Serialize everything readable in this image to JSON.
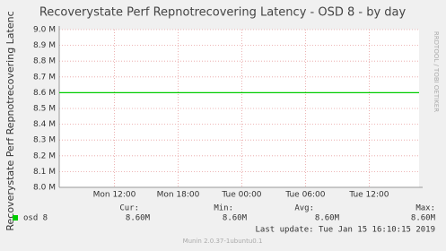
{
  "chart_data": {
    "type": "line",
    "title": "Recoverystate Perf Repnotrecovering Latency - OSD 8 - by day",
    "y_label": "Recoverystate Perf Repnotrecovering Latenc",
    "side_text": "RRDTOOL / TOBI OETIKER",
    "x": [
      6.8,
      40.7
    ],
    "series": [
      {
        "name": "osd 8",
        "color": "#00cc00",
        "values": [
          8.6,
          8.6
        ],
        "cur": "8.60M",
        "min": "8.60M",
        "avg": "8.60M",
        "max": "8.60M"
      }
    ],
    "stat_headers": [
      "Cur:",
      "Min:",
      "Avg:",
      "Max:"
    ],
    "xlim": [
      6.8,
      40.7
    ],
    "xticks": [
      {
        "value": 12,
        "label": "Mon 12:00"
      },
      {
        "value": 18,
        "label": "Mon 18:00"
      },
      {
        "value": 24,
        "label": "Tue 00:00"
      },
      {
        "value": 30,
        "label": "Tue 06:00"
      },
      {
        "value": 36,
        "label": "Tue 12:00"
      }
    ],
    "ylim": [
      8.0,
      9.0
    ],
    "yticks": [
      {
        "value": 8.0,
        "label": "8.0 M"
      },
      {
        "value": 8.1,
        "label": "8.1 M"
      },
      {
        "value": 8.2,
        "label": "8.2 M"
      },
      {
        "value": 8.3,
        "label": "8.3 M"
      },
      {
        "value": 8.4,
        "label": "8.4 M"
      },
      {
        "value": 8.5,
        "label": "8.5 M"
      },
      {
        "value": 8.6,
        "label": "8.6 M"
      },
      {
        "value": 8.7,
        "label": "8.7 M"
      },
      {
        "value": 8.8,
        "label": "8.8 M"
      },
      {
        "value": 8.9,
        "label": "8.9 M"
      },
      {
        "value": 9.0,
        "label": "9.0 M"
      }
    ],
    "grid": true,
    "last_update": "Last update: Tue Jan 15 16:10:15 2019",
    "footer": "Munin 2.0.37-1ubuntu0.1"
  }
}
